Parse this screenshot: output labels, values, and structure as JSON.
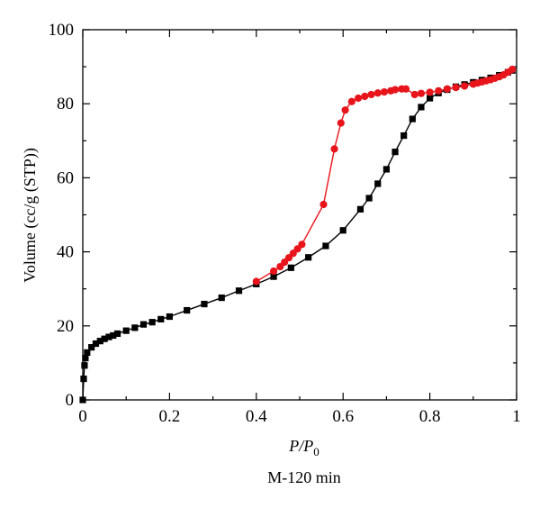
{
  "chart_data": {
    "type": "scatter",
    "title": "",
    "xlabel": "P/P0",
    "xlabel_parts": {
      "main": "P/P",
      "sub": "0"
    },
    "ylabel": "Volume (cc/g (STP))",
    "caption": "M-120 min",
    "xlim": [
      0,
      1
    ],
    "ylim": [
      0,
      100
    ],
    "x_ticks": [
      0,
      0.2,
      0.4,
      0.6,
      0.8,
      1
    ],
    "x_tick_labels": [
      "0",
      "0.2",
      "0.4",
      "0.6",
      "0.8",
      "1"
    ],
    "y_ticks": [
      0,
      20,
      40,
      60,
      80,
      100
    ],
    "y_tick_labels": [
      "0",
      "20",
      "40",
      "60",
      "80",
      "100"
    ],
    "grid": false,
    "series": [
      {
        "color": "#000000",
        "marker": "square",
        "points": [
          [
            0.0,
            0.0
          ],
          [
            0.002,
            5.7
          ],
          [
            0.004,
            9.3
          ],
          [
            0.006,
            11.3
          ],
          [
            0.01,
            12.8
          ],
          [
            0.02,
            14.2
          ],
          [
            0.03,
            15.2
          ],
          [
            0.04,
            15.9
          ],
          [
            0.05,
            16.5
          ],
          [
            0.06,
            17.0
          ],
          [
            0.07,
            17.4
          ],
          [
            0.08,
            17.9
          ],
          [
            0.1,
            18.7
          ],
          [
            0.12,
            19.5
          ],
          [
            0.14,
            20.4
          ],
          [
            0.16,
            21.0
          ],
          [
            0.18,
            21.8
          ],
          [
            0.2,
            22.5
          ],
          [
            0.24,
            24.2
          ],
          [
            0.28,
            25.9
          ],
          [
            0.32,
            27.6
          ],
          [
            0.36,
            29.5
          ],
          [
            0.4,
            31.3
          ],
          [
            0.44,
            33.3
          ],
          [
            0.48,
            35.7
          ],
          [
            0.52,
            38.5
          ],
          [
            0.56,
            41.6
          ],
          [
            0.6,
            45.8
          ],
          [
            0.64,
            51.5
          ],
          [
            0.66,
            54.5
          ],
          [
            0.68,
            58.4
          ],
          [
            0.7,
            62.3
          ],
          [
            0.72,
            67.0
          ],
          [
            0.74,
            71.4
          ],
          [
            0.76,
            75.9
          ],
          [
            0.78,
            79.1
          ],
          [
            0.8,
            81.5
          ],
          [
            0.82,
            82.9
          ],
          [
            0.84,
            83.8
          ],
          [
            0.86,
            84.6
          ],
          [
            0.88,
            85.2
          ],
          [
            0.9,
            85.8
          ],
          [
            0.92,
            86.4
          ],
          [
            0.94,
            87.0
          ],
          [
            0.96,
            87.7
          ],
          [
            0.98,
            88.5
          ],
          [
            0.99,
            89.0
          ]
        ]
      },
      {
        "color": "#e8141b",
        "marker": "circle",
        "points": [
          [
            0.4,
            32.0
          ],
          [
            0.44,
            34.8
          ],
          [
            0.455,
            36.0
          ],
          [
            0.465,
            37.2
          ],
          [
            0.475,
            38.4
          ],
          [
            0.485,
            39.6
          ],
          [
            0.495,
            40.8
          ],
          [
            0.505,
            42.0
          ],
          [
            0.555,
            52.8
          ],
          [
            0.58,
            67.8
          ],
          [
            0.595,
            74.8
          ],
          [
            0.605,
            78.3
          ],
          [
            0.62,
            80.6
          ],
          [
            0.635,
            81.5
          ],
          [
            0.65,
            82.0
          ],
          [
            0.665,
            82.5
          ],
          [
            0.68,
            82.9
          ],
          [
            0.695,
            83.2
          ],
          [
            0.71,
            83.5
          ],
          [
            0.72,
            83.8
          ],
          [
            0.735,
            84.0
          ],
          [
            0.745,
            84.0
          ],
          [
            0.765,
            82.5
          ],
          [
            0.78,
            82.8
          ],
          [
            0.8,
            83.1
          ],
          [
            0.82,
            83.5
          ],
          [
            0.84,
            84.0
          ],
          [
            0.86,
            84.4
          ],
          [
            0.88,
            84.8
          ],
          [
            0.9,
            85.3
          ],
          [
            0.91,
            85.6
          ],
          [
            0.92,
            85.9
          ],
          [
            0.93,
            86.2
          ],
          [
            0.94,
            86.5
          ],
          [
            0.95,
            86.9
          ],
          [
            0.96,
            87.3
          ],
          [
            0.97,
            87.8
          ],
          [
            0.98,
            88.5
          ],
          [
            0.99,
            89.3
          ]
        ]
      }
    ]
  }
}
